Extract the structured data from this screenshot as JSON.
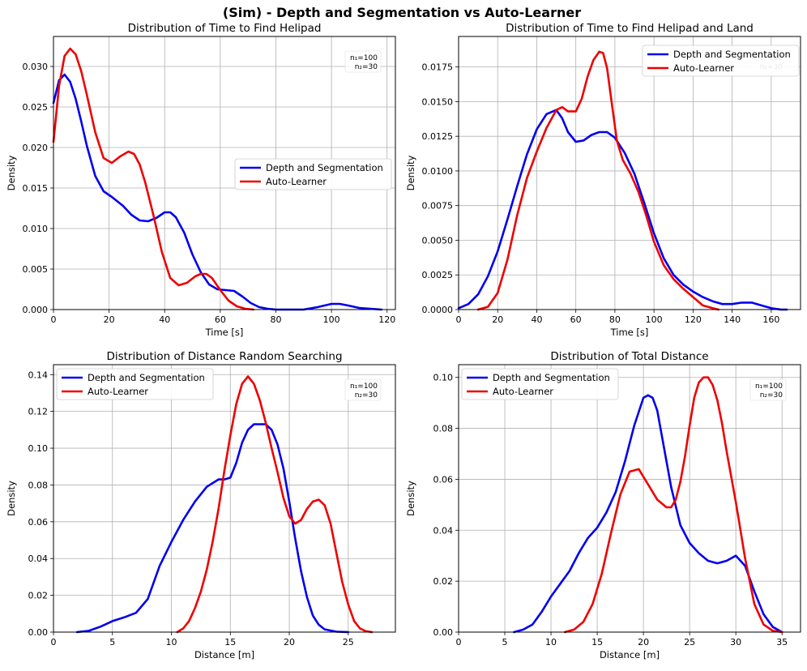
{
  "figure": {
    "suptitle": "(Sim) - Depth and Segmentation vs Auto-Learner"
  },
  "colors": {
    "series_1": "#0000ee",
    "series_2": "#ee0000",
    "grid": "#b0b0b0"
  },
  "chart_data": [
    {
      "type": "line",
      "title": "Distribution of Time to Find Helipad",
      "xlabel": "Time [s]",
      "ylabel": "Density",
      "xlim": [
        0,
        123
      ],
      "ylim": [
        0,
        0.0337
      ],
      "xticks": [
        0,
        20,
        40,
        60,
        80,
        100,
        120
      ],
      "yticks": [
        0,
        0.005,
        0.01,
        0.015,
        0.02,
        0.025,
        0.03
      ],
      "ytick_labels": [
        "0.000",
        "0.005",
        "0.010",
        "0.015",
        "0.020",
        "0.025",
        "0.030"
      ],
      "xtick_labels": [
        "0",
        "20",
        "40",
        "60",
        "80",
        "100",
        "120"
      ],
      "grid": true,
      "legend_position": "center-right",
      "annotation": {
        "n1": "n₁=100",
        "n2": "n₂=30"
      },
      "series": [
        {
          "name": "Depth and Segmentation",
          "x": [
            0,
            2,
            4,
            6,
            8,
            10,
            12,
            15,
            18,
            21,
            25,
            28,
            31,
            34,
            37,
            40,
            42,
            44,
            47,
            50,
            53,
            56,
            59,
            62,
            65,
            68,
            71,
            74,
            77,
            80,
            85,
            90,
            95,
            100,
            103,
            106,
            110,
            114,
            118
          ],
          "y": [
            0.0255,
            0.0283,
            0.029,
            0.0281,
            0.026,
            0.0232,
            0.0202,
            0.0165,
            0.0146,
            0.0139,
            0.0128,
            0.0117,
            0.011,
            0.0109,
            0.0113,
            0.012,
            0.012,
            0.0114,
            0.0095,
            0.0068,
            0.0046,
            0.0031,
            0.0025,
            0.0024,
            0.0023,
            0.0016,
            0.0008,
            0.0003,
            0.0001,
            0.0,
            0.0,
            0.0,
            0.0003,
            0.0007,
            0.0007,
            0.0005,
            0.0002,
            0.0001,
            0.0
          ]
        },
        {
          "name": "Auto-Learner",
          "x": [
            0,
            2,
            4,
            6,
            8,
            10,
            12,
            15,
            18,
            21,
            24,
            27,
            29,
            31,
            33,
            36,
            39,
            42,
            45,
            48,
            51,
            53,
            55,
            57,
            60,
            63,
            66,
            69,
            72
          ],
          "y": [
            0.0207,
            0.0276,
            0.0313,
            0.0322,
            0.0315,
            0.0294,
            0.0265,
            0.0219,
            0.0187,
            0.0181,
            0.0189,
            0.0195,
            0.0192,
            0.0179,
            0.0157,
            0.0116,
            0.0071,
            0.0039,
            0.003,
            0.0033,
            0.0041,
            0.0044,
            0.0044,
            0.0039,
            0.0024,
            0.0011,
            0.0004,
            0.0001,
            0.0
          ]
        }
      ]
    },
    {
      "type": "line",
      "title": "Distribution of Time to Find Helipad and Land",
      "xlabel": "Time [s]",
      "ylabel": "Density",
      "xlim": [
        0,
        175
      ],
      "ylim": [
        0,
        0.0197
      ],
      "xticks": [
        0,
        20,
        40,
        60,
        80,
        100,
        120,
        140,
        160
      ],
      "yticks": [
        0,
        0.0025,
        0.005,
        0.0075,
        0.01,
        0.0125,
        0.015,
        0.0175
      ],
      "ytick_labels": [
        "0.0000",
        "0.0025",
        "0.0050",
        "0.0075",
        "0.0100",
        "0.0125",
        "0.0150",
        "0.0175"
      ],
      "xtick_labels": [
        "0",
        "20",
        "40",
        "60",
        "80",
        "100",
        "120",
        "140",
        "160"
      ],
      "grid": true,
      "legend_position": "top-right",
      "annotation": {
        "n1": "n₁=100",
        "n2": "n₂=30"
      },
      "series": [
        {
          "name": "Depth and Segmentation",
          "x": [
            0,
            5,
            10,
            15,
            20,
            25,
            30,
            35,
            40,
            45,
            50,
            53,
            56,
            60,
            64,
            68,
            72,
            76,
            80,
            85,
            90,
            95,
            100,
            105,
            110,
            115,
            120,
            125,
            130,
            135,
            140,
            145,
            150,
            155,
            160,
            165,
            168
          ],
          "y": [
            0.0001,
            0.0004,
            0.0011,
            0.0024,
            0.0042,
            0.0065,
            0.0089,
            0.0112,
            0.013,
            0.0141,
            0.0144,
            0.0138,
            0.0128,
            0.0121,
            0.0122,
            0.0126,
            0.0128,
            0.0128,
            0.0124,
            0.0113,
            0.0098,
            0.0077,
            0.0055,
            0.0037,
            0.0025,
            0.0018,
            0.0013,
            0.0009,
            0.0006,
            0.0004,
            0.0004,
            0.0005,
            0.0005,
            0.0003,
            0.0001,
            0.0,
            0.0
          ]
        },
        {
          "name": "Auto-Learner",
          "x": [
            10,
            15,
            20,
            25,
            30,
            35,
            40,
            45,
            50,
            53,
            56,
            60,
            63,
            66,
            69,
            72,
            74,
            76,
            78,
            81,
            84,
            88,
            92,
            96,
            100,
            105,
            110,
            115,
            120,
            125,
            130,
            133
          ],
          "y": [
            0.0,
            0.0002,
            0.0012,
            0.0036,
            0.0068,
            0.0095,
            0.0114,
            0.0131,
            0.0144,
            0.0146,
            0.0143,
            0.0143,
            0.0152,
            0.0168,
            0.018,
            0.0186,
            0.0185,
            0.0174,
            0.0153,
            0.0122,
            0.0108,
            0.0098,
            0.0085,
            0.0068,
            0.0049,
            0.0032,
            0.0022,
            0.0015,
            0.0009,
            0.0003,
            0.0001,
            0.0
          ]
        }
      ]
    },
    {
      "type": "line",
      "title": "Distribution of Distance Random Searching",
      "xlabel": "Distance [m]",
      "ylabel": "Density",
      "xlim": [
        0,
        29
      ],
      "ylim": [
        0,
        0.1454
      ],
      "xticks": [
        0,
        5,
        10,
        15,
        20,
        25
      ],
      "yticks": [
        0,
        0.02,
        0.04,
        0.06,
        0.08,
        0.1,
        0.12,
        0.14
      ],
      "ytick_labels": [
        "0.00",
        "0.02",
        "0.04",
        "0.06",
        "0.08",
        "0.10",
        "0.12",
        "0.14"
      ],
      "xtick_labels": [
        "0",
        "5",
        "10",
        "15",
        "20",
        "25"
      ],
      "grid": true,
      "legend_position": "top-left",
      "annotation": {
        "n1": "n₁=100",
        "n2": "n₂=30"
      },
      "series": [
        {
          "name": "Depth and Segmentation",
          "x": [
            2,
            3,
            4,
            5,
            6,
            7,
            8,
            9,
            10,
            11,
            12,
            13,
            14,
            14.5,
            15,
            15.5,
            16,
            16.5,
            17,
            17.5,
            18,
            18.5,
            19,
            19.5,
            20,
            20.5,
            21,
            21.5,
            22,
            22.5,
            23,
            24,
            25
          ],
          "y": [
            0.0,
            0.0007,
            0.003,
            0.006,
            0.008,
            0.0105,
            0.018,
            0.036,
            0.049,
            0.061,
            0.071,
            0.079,
            0.083,
            0.083,
            0.084,
            0.092,
            0.103,
            0.11,
            0.113,
            0.113,
            0.113,
            0.11,
            0.102,
            0.089,
            0.071,
            0.051,
            0.033,
            0.019,
            0.009,
            0.004,
            0.0015,
            0.0002,
            0.0
          ]
        },
        {
          "name": "Auto-Learner",
          "x": [
            10.5,
            11,
            11.5,
            12,
            12.5,
            13,
            13.5,
            14,
            14.5,
            15,
            15.5,
            16,
            16.5,
            17,
            17.5,
            18,
            18.5,
            19,
            19.5,
            20,
            20.5,
            21,
            21.5,
            22,
            22.5,
            23,
            23.5,
            24,
            24.5,
            25,
            25.5,
            26,
            26.5,
            27
          ],
          "y": [
            0.0,
            0.002,
            0.006,
            0.013,
            0.022,
            0.034,
            0.049,
            0.067,
            0.088,
            0.107,
            0.124,
            0.135,
            0.139,
            0.135,
            0.126,
            0.114,
            0.1,
            0.087,
            0.073,
            0.063,
            0.059,
            0.061,
            0.067,
            0.071,
            0.072,
            0.069,
            0.059,
            0.043,
            0.027,
            0.015,
            0.006,
            0.002,
            0.0005,
            0.0
          ]
        }
      ]
    },
    {
      "type": "line",
      "title": "Distribution of Total Distance",
      "xlabel": "Distance [m]",
      "ylabel": "Density",
      "xlim": [
        0,
        37
      ],
      "ylim": [
        0,
        0.105
      ],
      "xticks": [
        0,
        5,
        10,
        15,
        20,
        25,
        30,
        35
      ],
      "yticks": [
        0,
        0.02,
        0.04,
        0.06,
        0.08,
        0.1
      ],
      "ytick_labels": [
        "0.00",
        "0.02",
        "0.04",
        "0.06",
        "0.08",
        "0.10"
      ],
      "xtick_labels": [
        "0",
        "5",
        "10",
        "15",
        "20",
        "25",
        "30",
        "35"
      ],
      "grid": true,
      "legend_position": "top-left",
      "annotation": {
        "n1": "n₁=100",
        "n2": "n₂=30"
      },
      "series": [
        {
          "name": "Depth and Segmentation",
          "x": [
            6,
            7,
            8,
            9,
            10,
            11,
            12,
            13,
            14,
            15,
            16,
            17,
            18,
            19,
            20,
            20.5,
            21,
            21.5,
            22,
            23,
            24,
            25,
            26,
            27,
            28,
            29,
            30,
            31,
            32,
            33,
            34,
            35
          ],
          "y": [
            0.0,
            0.001,
            0.003,
            0.008,
            0.014,
            0.019,
            0.024,
            0.031,
            0.037,
            0.041,
            0.047,
            0.055,
            0.067,
            0.081,
            0.092,
            0.093,
            0.092,
            0.087,
            0.077,
            0.057,
            0.042,
            0.035,
            0.031,
            0.028,
            0.027,
            0.028,
            0.03,
            0.026,
            0.016,
            0.007,
            0.002,
            0.0
          ]
        },
        {
          "name": "Auto-Learner",
          "x": [
            11.5,
            12.5,
            13.5,
            14.5,
            15.5,
            16.5,
            17.5,
            18.5,
            19.5,
            20.5,
            21.5,
            22.5,
            23,
            23.5,
            24,
            24.5,
            25,
            25.5,
            26,
            26.5,
            27,
            27.5,
            28,
            28.5,
            29,
            30,
            31,
            32,
            33,
            34,
            35
          ],
          "y": [
            0.0,
            0.001,
            0.004,
            0.011,
            0.023,
            0.039,
            0.054,
            0.063,
            0.064,
            0.058,
            0.052,
            0.049,
            0.049,
            0.052,
            0.059,
            0.069,
            0.081,
            0.092,
            0.098,
            0.1,
            0.1,
            0.097,
            0.091,
            0.082,
            0.071,
            0.051,
            0.029,
            0.011,
            0.003,
            0.0005,
            0.0
          ]
        }
      ]
    }
  ]
}
